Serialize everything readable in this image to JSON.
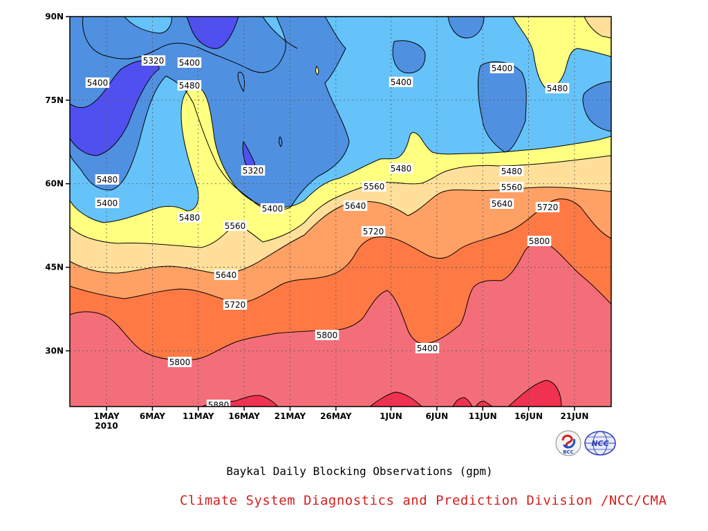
{
  "chart_data": {
    "type": "heatmap",
    "title": "",
    "xlabel": "",
    "ylabel": "",
    "x_ticks": [
      "1MAY",
      "6MAY",
      "11MAY",
      "16MAY",
      "21MAY",
      "26MAY",
      "1JUN",
      "6JUN",
      "11JUN",
      "16JUN",
      "21JUN"
    ],
    "x_year_label": "2010",
    "x_range": [
      "2010-04-27",
      "2010-06-25"
    ],
    "y_ticks": [
      "30N",
      "45N",
      "60N",
      "75N",
      "90N"
    ],
    "y_range_deg": [
      20,
      90
    ],
    "grid": true,
    "contour_levels": [
      5320,
      5400,
      5480,
      5560,
      5640,
      5720,
      5800,
      5880
    ],
    "fill_colors": [
      "#5050f0",
      "#5090e0",
      "#65c3fa",
      "#ffff80",
      "#ffdf99",
      "#ffa065",
      "#ff7945",
      "#f46e7a",
      "#f03250"
    ],
    "contour_labels": [
      "5400",
      "5320",
      "5400",
      "5480",
      "5400",
      "5480",
      "5400",
      "5320",
      "5320",
      "5400",
      "5480",
      "5560",
      "5400",
      "5480",
      "5480",
      "5560",
      "5640",
      "5720",
      "5800",
      "5640",
      "5720",
      "5480",
      "5560",
      "5640",
      "5720",
      "5800",
      "5800",
      "5400",
      "5480",
      "5560",
      "5640",
      "5720",
      "5800",
      "5880"
    ]
  },
  "caption": "Baykal Daily Blocking Observations (gpm)",
  "credit": "Climate System Diagnostics and Prediction Division /NCC/CMA",
  "logos": {
    "bcc": {
      "text": "BCC",
      "icon": "bcc-logo"
    },
    "ncc": {
      "text": "NCC",
      "icon": "ncc-logo"
    }
  }
}
